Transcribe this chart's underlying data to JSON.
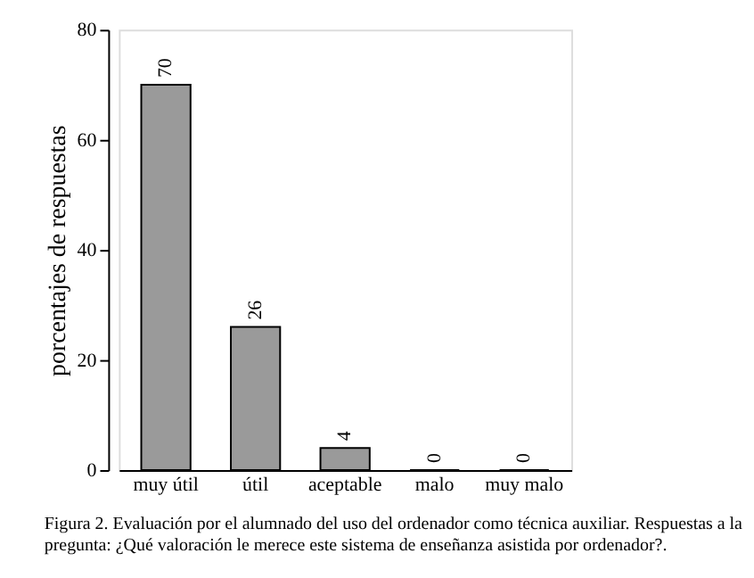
{
  "chart_data": {
    "type": "bar",
    "categories": [
      "muy útil",
      "útil",
      "aceptable",
      "malo",
      "muy malo"
    ],
    "values": [
      70,
      26,
      4,
      0,
      0
    ],
    "color": "#9a9a9a",
    "ylim": [
      0,
      80
    ],
    "yticks": [
      0,
      20,
      40,
      60,
      80
    ],
    "ylabel": "porcentajes de respuestas",
    "data_labels": true,
    "grid": false,
    "annotations": [
      "Figura 2. Evaluación por el alumnado del uso del ordenador como técnica auxiliar. Respuestas a la",
      "pregunta: ¿Qué valoración le merece este sistema de enseñanza asistida por ordenador?."
    ]
  }
}
